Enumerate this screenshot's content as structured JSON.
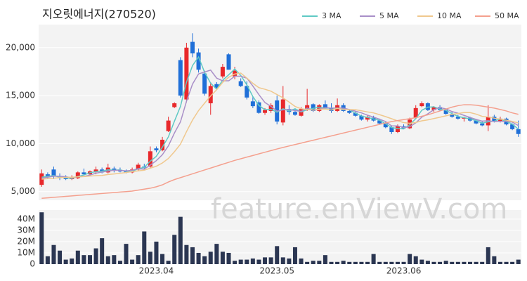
{
  "watermark": "feature.enViewV.com",
  "chart_data": [
    {
      "type": "candlestick",
      "title": "지오릿에너지(270520)",
      "up_color": "#e8282b",
      "down_color": "#1f6fd8",
      "open": [
        5700,
        6800,
        7300,
        6500,
        6400,
        6300,
        6400,
        7000,
        6800,
        7100,
        7300,
        7000,
        7400,
        7200,
        7100,
        7000,
        7300,
        7600,
        7600,
        9500,
        9300,
        11300,
        13800,
        18700,
        14600,
        20600,
        19500,
        17300,
        14200,
        16200,
        17000,
        19300,
        17000,
        16500,
        16000,
        14400,
        14300,
        13200,
        13400,
        14500,
        12200,
        13600,
        13300,
        12900,
        13600,
        14100,
        13400,
        14100,
        13700,
        13400,
        14000,
        13400,
        13200,
        12900,
        12500,
        12700,
        12400,
        12100,
        11700,
        11200,
        11800,
        11600,
        12700,
        13900,
        14200,
        13500,
        13800,
        13500,
        13100,
        12800,
        12600,
        12700,
        12400,
        12100,
        11900,
        12800,
        12300,
        12600,
        12000,
        11500
      ],
      "high": [
        7300,
        7000,
        7600,
        6900,
        6700,
        6700,
        7100,
        7400,
        7200,
        7600,
        7500,
        7900,
        7600,
        7500,
        7300,
        7500,
        8000,
        7900,
        9700,
        9700,
        10700,
        12800,
        14300,
        19000,
        20500,
        21500,
        19900,
        17600,
        16400,
        16400,
        18300,
        19400,
        18000,
        16800,
        16500,
        14900,
        14500,
        13700,
        14200,
        15000,
        16000,
        14000,
        13600,
        13800,
        15700,
        14200,
        14100,
        14500,
        14200,
        14700,
        14200,
        13600,
        13400,
        13000,
        13000,
        12900,
        12600,
        12300,
        11900,
        12000,
        12000,
        12700,
        14000,
        14400,
        14300,
        13900,
        14000,
        13600,
        13300,
        13000,
        12800,
        12800,
        12500,
        12300,
        14000,
        13000,
        12800,
        12700,
        12100,
        12400
      ],
      "low": [
        5500,
        6400,
        6300,
        6200,
        6200,
        6200,
        6300,
        6700,
        6600,
        6800,
        6900,
        6900,
        7000,
        7000,
        6900,
        6900,
        7100,
        7300,
        7500,
        9100,
        9200,
        11200,
        13700,
        14800,
        14300,
        19000,
        17400,
        15000,
        13000,
        15600,
        16800,
        17700,
        16700,
        15900,
        14600,
        13700,
        13100,
        13000,
        13200,
        12000,
        11900,
        13000,
        12900,
        12800,
        13400,
        13300,
        13300,
        13600,
        13200,
        13300,
        13300,
        13100,
        12800,
        12400,
        12300,
        12300,
        12000,
        11600,
        11000,
        11100,
        11500,
        11500,
        12600,
        13800,
        13400,
        13300,
        13400,
        13000,
        12700,
        12500,
        12300,
        12300,
        12000,
        11800,
        11300,
        12200,
        12200,
        11900,
        11400,
        10700
      ],
      "close": [
        6900,
        6500,
        6600,
        6400,
        6300,
        6400,
        7000,
        6800,
        7100,
        7300,
        7000,
        7500,
        7200,
        7100,
        7000,
        7300,
        7800,
        7500,
        9200,
        9300,
        10400,
        12400,
        14200,
        15000,
        20000,
        19400,
        17700,
        15200,
        16000,
        15800,
        18000,
        17700,
        17600,
        16000,
        14800,
        13900,
        13200,
        13500,
        14000,
        12300,
        14600,
        13300,
        13000,
        13600,
        14000,
        13400,
        14000,
        13700,
        13400,
        14000,
        13400,
        13200,
        12900,
        12500,
        12800,
        12400,
        12100,
        11700,
        11200,
        11800,
        11600,
        12500,
        13700,
        14200,
        13500,
        13800,
        13500,
        13100,
        12800,
        12600,
        12700,
        12400,
        12100,
        11900,
        12800,
        12300,
        12600,
        12000,
        11500,
        11000
      ],
      "series": [
        {
          "name": "3 MA",
          "color": "#5fc9c4",
          "values": [
            6500,
            6600,
            6670,
            6500,
            6430,
            6370,
            6570,
            6730,
            6970,
            7070,
            7130,
            7270,
            7230,
            7270,
            7100,
            7130,
            7370,
            7530,
            8170,
            8670,
            9630,
            10700,
            12330,
            13870,
            16400,
            18130,
            19030,
            17430,
            16300,
            15670,
            16600,
            17170,
            17770,
            17100,
            16130,
            14900,
            13970,
            13530,
            13570,
            13270,
            13630,
            13400,
            13630,
            13300,
            13530,
            13670,
            13800,
            13700,
            13700,
            13700,
            13600,
            13530,
            13170,
            12870,
            12730,
            12570,
            12430,
            12070,
            11670,
            11570,
            11530,
            11970,
            12600,
            13470,
            13800,
            13830,
            13600,
            13470,
            13130,
            12830,
            12700,
            12570,
            12400,
            12130,
            12270,
            12330,
            12570,
            12300,
            12030,
            11500
          ]
        },
        {
          "name": "5 MA",
          "color": "#a98fc8",
          "values": [
            6400,
            6500,
            6600,
            6600,
            6540,
            6440,
            6540,
            6580,
            6720,
            6920,
            7040,
            7140,
            7220,
            7220,
            7160,
            7220,
            7380,
            7340,
            7760,
            8220,
            8840,
            9760,
            11100,
            12260,
            14400,
            16200,
            17260,
            17460,
            17660,
            16820,
            16540,
            16540,
            17020,
            17020,
            16820,
            16000,
            15100,
            14280,
            13880,
            13380,
            13520,
            13540,
            13440,
            13360,
            13700,
            13460,
            13600,
            13740,
            13700,
            13700,
            13700,
            13540,
            13380,
            13200,
            12960,
            12760,
            12540,
            12300,
            11840,
            11840,
            11680,
            11760,
            12160,
            12760,
            13100,
            13540,
            13740,
            13620,
            13340,
            13160,
            12940,
            12720,
            12520,
            12340,
            12380,
            12300,
            12320,
            12320,
            12240,
            11880
          ]
        },
        {
          "name": "10 MA",
          "color": "#f0c88e",
          "values": [
            6300,
            6350,
            6400,
            6450,
            6480,
            6500,
            6530,
            6560,
            6620,
            6660,
            6680,
            6780,
            6840,
            6910,
            6980,
            7080,
            7160,
            7230,
            7440,
            7640,
            7980,
            8450,
            9150,
            9940,
            11240,
            12450,
            13440,
            14210,
            14960,
            15610,
            16380,
            16910,
            17250,
            17350,
            16830,
            16280,
            15830,
            15660,
            15460,
            15110,
            14770,
            14330,
            13870,
            13630,
            13550,
            13500,
            13580,
            13600,
            13500,
            13670,
            13550,
            13540,
            13530,
            13420,
            13300,
            13200,
            13010,
            12810,
            12590,
            12370,
            12190,
            12120,
            12200,
            12370,
            12470,
            12610,
            12750,
            12890,
            13050,
            13130,
            13240,
            13230,
            13070,
            12840,
            12770,
            12650,
            12550,
            12440,
            12310,
            12150
          ]
        },
        {
          "name": "50 MA",
          "color": "#f4a08e",
          "values": [
            4300,
            4350,
            4400,
            4450,
            4500,
            4550,
            4600,
            4650,
            4700,
            4750,
            4800,
            4850,
            4900,
            4950,
            5000,
            5050,
            5150,
            5250,
            5350,
            5500,
            5700,
            6000,
            6250,
            6450,
            6650,
            6850,
            7050,
            7250,
            7450,
            7650,
            7850,
            8050,
            8250,
            8420,
            8590,
            8760,
            8930,
            9100,
            9270,
            9440,
            9600,
            9750,
            9900,
            10050,
            10200,
            10350,
            10500,
            10650,
            10800,
            10950,
            11100,
            11250,
            11400,
            11550,
            11700,
            11850,
            12000,
            12150,
            12300,
            12400,
            12500,
            12600,
            12700,
            12850,
            13000,
            13200,
            13400,
            13600,
            13800,
            13950,
            14050,
            14050,
            14000,
            13900,
            13800,
            13700,
            13550,
            13400,
            13200,
            13050
          ]
        }
      ],
      "ylim": [
        4100,
        22400
      ],
      "yticks": [
        {
          "value": 5000,
          "label": "5,000"
        },
        {
          "value": 10000,
          "label": "10,000"
        },
        {
          "value": 15000,
          "label": "15,000"
        },
        {
          "value": 20000,
          "label": "20,000"
        }
      ],
      "grid": true,
      "legend": "top-right"
    },
    {
      "type": "bar",
      "color": "#2b3652",
      "categories": [
        null,
        null,
        null,
        null,
        null,
        null,
        null,
        null,
        null,
        null,
        null,
        null,
        null,
        null,
        null,
        null,
        null,
        null,
        null,
        "2023.04",
        null,
        null,
        null,
        null,
        null,
        null,
        null,
        null,
        null,
        null,
        null,
        null,
        null,
        null,
        null,
        null,
        null,
        null,
        null,
        "2023.05",
        null,
        null,
        null,
        null,
        null,
        null,
        null,
        null,
        null,
        null,
        null,
        null,
        null,
        null,
        null,
        null,
        null,
        null,
        null,
        null,
        "2023.06",
        null,
        null,
        null,
        null,
        null,
        null,
        null,
        null,
        null,
        null,
        null,
        null,
        null,
        null,
        null,
        null,
        null,
        null,
        null
      ],
      "values": [
        46000000,
        7000000,
        17000000,
        12000000,
        4000000,
        5000000,
        12000000,
        8000000,
        8000000,
        14000000,
        23000000,
        7000000,
        8000000,
        3000000,
        18000000,
        4000000,
        8000000,
        29000000,
        11000000,
        20000000,
        9000000,
        3000000,
        26000000,
        42000000,
        17000000,
        15000000,
        10000000,
        7000000,
        11000000,
        18000000,
        11000000,
        10000000,
        3000000,
        4000000,
        4000000,
        5000000,
        4000000,
        6000000,
        6000000,
        16000000,
        6000000,
        5000000,
        15000000,
        5000000,
        2000000,
        3000000,
        3000000,
        8000000,
        2000000,
        2000000,
        3000000,
        2000000,
        2000000,
        2000000,
        2000000,
        9000000,
        2000000,
        2000000,
        2000000,
        2000000,
        2000000,
        9000000,
        7000000,
        4000000,
        3000000,
        2000000,
        2000000,
        3000000,
        2000000,
        2000000,
        2000000,
        2000000,
        2000000,
        2000000,
        15000000,
        7000000,
        2000000,
        2000000,
        2000000,
        4000000
      ],
      "ylim": [
        0,
        48000000
      ],
      "yticks": [
        0,
        {
          "value": 10000000,
          "label": "10M"
        },
        {
          "value": 20000000,
          "label": "20M"
        },
        {
          "value": 30000000,
          "label": "30M"
        },
        {
          "value": 40000000,
          "label": "40M"
        }
      ],
      "grid": true
    }
  ]
}
